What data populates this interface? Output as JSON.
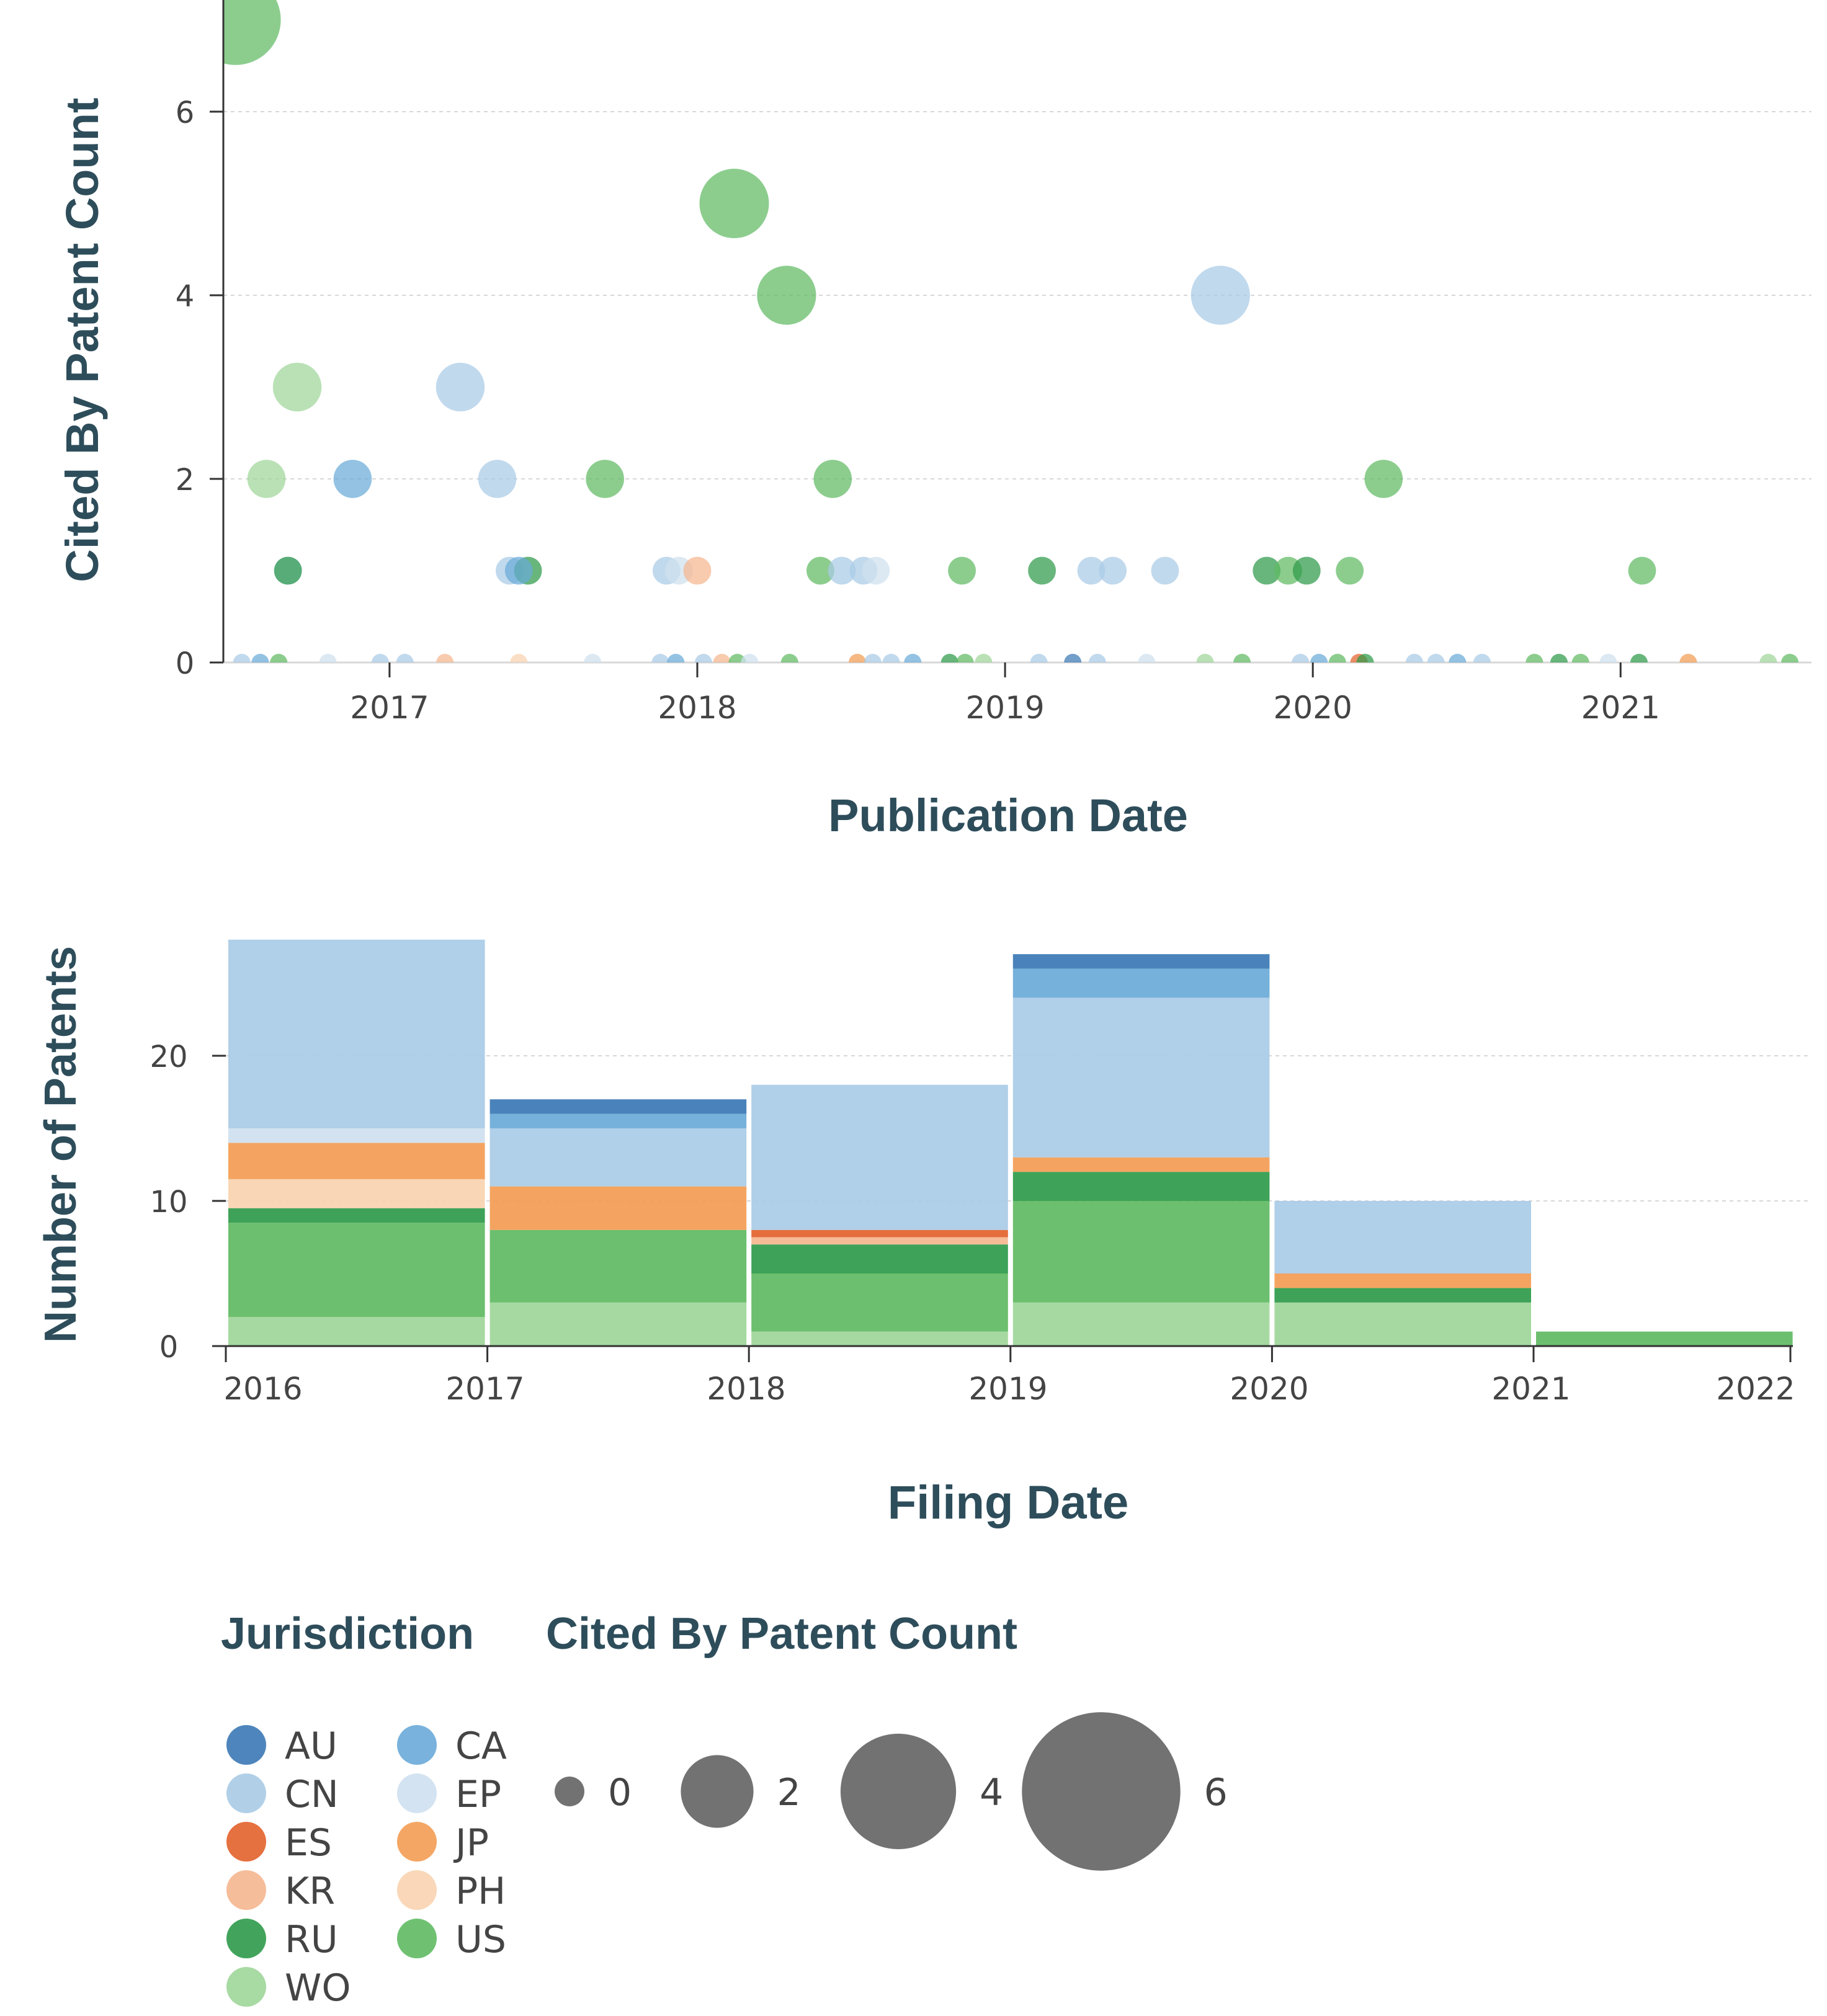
{
  "colors": {
    "AU": "#3b78b5",
    "CA": "#6aaad8",
    "CN": "#a9cbe6",
    "EP": "#cfe0ef",
    "ES": "#e2622b",
    "JP": "#f39c53",
    "KR": "#f5b68f",
    "PH": "#f8d3b0",
    "RU": "#2e9a4a",
    "US": "#5fba62",
    "WO": "#9ed699"
  },
  "chart_data": [
    {
      "type": "scatter",
      "xlabel": "Publication Date",
      "ylabel": "Cited By Patent Count",
      "xlim": [
        2016.46,
        2021.58
      ],
      "ylim": [
        0,
        7
      ],
      "x_ticks": [
        2017,
        2018,
        2019,
        2020,
        2021
      ],
      "x_tick_labels": [
        "2017",
        "2018",
        "2019",
        "2020",
        "2021"
      ],
      "y_ticks": [
        0,
        2,
        4,
        6
      ],
      "y_tick_labels": [
        "0",
        "2",
        "4",
        "6"
      ],
      "grid": true,
      "points": [
        {
          "x": 2016.5,
          "y": 7,
          "j": "US"
        },
        {
          "x": 2018.12,
          "y": 5,
          "j": "US"
        },
        {
          "x": 2018.29,
          "y": 4,
          "j": "US"
        },
        {
          "x": 2019.7,
          "y": 4,
          "j": "CN"
        },
        {
          "x": 2016.7,
          "y": 3,
          "j": "WO"
        },
        {
          "x": 2017.23,
          "y": 3,
          "j": "CN"
        },
        {
          "x": 2016.6,
          "y": 2,
          "j": "WO"
        },
        {
          "x": 2016.88,
          "y": 2,
          "j": "CA"
        },
        {
          "x": 2017.35,
          "y": 2,
          "j": "CN"
        },
        {
          "x": 2017.7,
          "y": 2,
          "j": "US"
        },
        {
          "x": 2018.44,
          "y": 2,
          "j": "US"
        },
        {
          "x": 2020.23,
          "y": 2,
          "j": "US"
        },
        {
          "x": 2016.67,
          "y": 1,
          "j": "CN"
        },
        {
          "x": 2016.67,
          "y": 1,
          "j": "RU"
        },
        {
          "x": 2017.39,
          "y": 1,
          "j": "CN"
        },
        {
          "x": 2017.45,
          "y": 1,
          "j": "RU"
        },
        {
          "x": 2017.42,
          "y": 1,
          "j": "CA"
        },
        {
          "x": 2017.9,
          "y": 1,
          "j": "CN"
        },
        {
          "x": 2017.94,
          "y": 1,
          "j": "EP"
        },
        {
          "x": 2018.0,
          "y": 1,
          "j": "KR"
        },
        {
          "x": 2018.4,
          "y": 1,
          "j": "US"
        },
        {
          "x": 2018.47,
          "y": 1,
          "j": "CN"
        },
        {
          "x": 2018.54,
          "y": 1,
          "j": "CN"
        },
        {
          "x": 2018.58,
          "y": 1,
          "j": "EP"
        },
        {
          "x": 2018.86,
          "y": 1,
          "j": "US"
        },
        {
          "x": 2019.12,
          "y": 1,
          "j": "RU"
        },
        {
          "x": 2019.28,
          "y": 1,
          "j": "CN"
        },
        {
          "x": 2019.35,
          "y": 1,
          "j": "CN"
        },
        {
          "x": 2019.52,
          "y": 1,
          "j": "CN"
        },
        {
          "x": 2019.85,
          "y": 1,
          "j": "RU"
        },
        {
          "x": 2019.92,
          "y": 1,
          "j": "US"
        },
        {
          "x": 2019.98,
          "y": 1,
          "j": "RU"
        },
        {
          "x": 2020.12,
          "y": 1,
          "j": "US"
        },
        {
          "x": 2021.07,
          "y": 1,
          "j": "US"
        },
        {
          "x": 2016.52,
          "y": 0,
          "j": "CN"
        },
        {
          "x": 2016.58,
          "y": 0,
          "j": "CA"
        },
        {
          "x": 2016.64,
          "y": 0,
          "j": "US"
        },
        {
          "x": 2016.8,
          "y": 0,
          "j": "EP"
        },
        {
          "x": 2016.97,
          "y": 0,
          "j": "CN"
        },
        {
          "x": 2017.05,
          "y": 0,
          "j": "CN"
        },
        {
          "x": 2017.18,
          "y": 0,
          "j": "KR"
        },
        {
          "x": 2017.42,
          "y": 0,
          "j": "PH"
        },
        {
          "x": 2017.66,
          "y": 0,
          "j": "EP"
        },
        {
          "x": 2017.88,
          "y": 0,
          "j": "CN"
        },
        {
          "x": 2017.93,
          "y": 0,
          "j": "CA"
        },
        {
          "x": 2018.02,
          "y": 0,
          "j": "CN"
        },
        {
          "x": 2018.08,
          "y": 0,
          "j": "KR"
        },
        {
          "x": 2018.13,
          "y": 0,
          "j": "US"
        },
        {
          "x": 2018.17,
          "y": 0,
          "j": "EP"
        },
        {
          "x": 2018.3,
          "y": 0,
          "j": "US"
        },
        {
          "x": 2018.52,
          "y": 0,
          "j": "JP"
        },
        {
          "x": 2018.57,
          "y": 0,
          "j": "CN"
        },
        {
          "x": 2018.63,
          "y": 0,
          "j": "CN"
        },
        {
          "x": 2018.7,
          "y": 0,
          "j": "CA"
        },
        {
          "x": 2018.82,
          "y": 0,
          "j": "RU"
        },
        {
          "x": 2018.87,
          "y": 0,
          "j": "US"
        },
        {
          "x": 2018.93,
          "y": 0,
          "j": "WO"
        },
        {
          "x": 2019.11,
          "y": 0,
          "j": "CN"
        },
        {
          "x": 2019.22,
          "y": 0,
          "j": "AU"
        },
        {
          "x": 2019.3,
          "y": 0,
          "j": "CN"
        },
        {
          "x": 2019.46,
          "y": 0,
          "j": "EP"
        },
        {
          "x": 2019.65,
          "y": 0,
          "j": "WO"
        },
        {
          "x": 2019.77,
          "y": 0,
          "j": "US"
        },
        {
          "x": 2019.96,
          "y": 0,
          "j": "CN"
        },
        {
          "x": 2020.02,
          "y": 0,
          "j": "CA"
        },
        {
          "x": 2020.08,
          "y": 0,
          "j": "US"
        },
        {
          "x": 2020.15,
          "y": 0,
          "j": "ES"
        },
        {
          "x": 2020.17,
          "y": 0,
          "j": "RU"
        },
        {
          "x": 2020.33,
          "y": 0,
          "j": "CN"
        },
        {
          "x": 2020.4,
          "y": 0,
          "j": "CN"
        },
        {
          "x": 2020.47,
          "y": 0,
          "j": "CA"
        },
        {
          "x": 2020.55,
          "y": 0,
          "j": "CN"
        },
        {
          "x": 2020.72,
          "y": 0,
          "j": "US"
        },
        {
          "x": 2020.8,
          "y": 0,
          "j": "RU"
        },
        {
          "x": 2020.87,
          "y": 0,
          "j": "US"
        },
        {
          "x": 2020.96,
          "y": 0,
          "j": "EP"
        },
        {
          "x": 2021.06,
          "y": 0,
          "j": "RU"
        },
        {
          "x": 2021.22,
          "y": 0,
          "j": "JP"
        },
        {
          "x": 2021.48,
          "y": 0,
          "j": "WO"
        },
        {
          "x": 2021.55,
          "y": 0,
          "j": "US"
        }
      ]
    },
    {
      "type": "bar",
      "stacked": true,
      "xlabel": "Filing Date",
      "ylabel": "Number of Patents",
      "ylim": [
        0,
        28.5
      ],
      "y_ticks": [
        0,
        10,
        20
      ],
      "y_tick_labels": [
        "0",
        "10",
        "20"
      ],
      "x_tick_labels": [
        "2016",
        "2017",
        "2018",
        "2019",
        "2020",
        "2021",
        "2022"
      ],
      "grid": true,
      "categories": [
        "2016",
        "2017",
        "2018",
        "2019",
        "2020",
        "2021"
      ],
      "stack_order": [
        "WO",
        "US",
        "RU",
        "PH",
        "KR",
        "JP",
        "ES",
        "EP",
        "CN",
        "CA",
        "AU"
      ],
      "series": [
        {
          "name": "WO",
          "values": [
            2,
            3,
            1,
            3,
            3,
            0
          ]
        },
        {
          "name": "US",
          "values": [
            6.5,
            5,
            4,
            7,
            0,
            1
          ]
        },
        {
          "name": "RU",
          "values": [
            1,
            0,
            2,
            2,
            1,
            0
          ]
        },
        {
          "name": "PH",
          "values": [
            2,
            0,
            0,
            0,
            0,
            0
          ]
        },
        {
          "name": "KR",
          "values": [
            0,
            0,
            0.5,
            0,
            0,
            0
          ]
        },
        {
          "name": "JP",
          "values": [
            2.5,
            3,
            0,
            1,
            1,
            0
          ]
        },
        {
          "name": "ES",
          "values": [
            0,
            0,
            0.5,
            0,
            0,
            0
          ]
        },
        {
          "name": "EP",
          "values": [
            1,
            0,
            0,
            0,
            0,
            0
          ]
        },
        {
          "name": "CN",
          "values": [
            13,
            4,
            10,
            11,
            5,
            0
          ]
        },
        {
          "name": "CA",
          "values": [
            0,
            1,
            0,
            2,
            0,
            0
          ]
        },
        {
          "name": "AU",
          "values": [
            0,
            1,
            0,
            1,
            0,
            0
          ]
        }
      ]
    }
  ],
  "legend": {
    "jurisdiction_title": "Jurisdiction",
    "size_title": "Cited By Patent Count",
    "jurisdictions": [
      "AU",
      "CA",
      "CN",
      "EP",
      "ES",
      "JP",
      "KR",
      "PH",
      "RU",
      "US",
      "WO"
    ],
    "sizes": [
      {
        "value": 0,
        "label": "0"
      },
      {
        "value": 2,
        "label": "2"
      },
      {
        "value": 4,
        "label": "4"
      },
      {
        "value": 6,
        "label": "6"
      }
    ]
  }
}
